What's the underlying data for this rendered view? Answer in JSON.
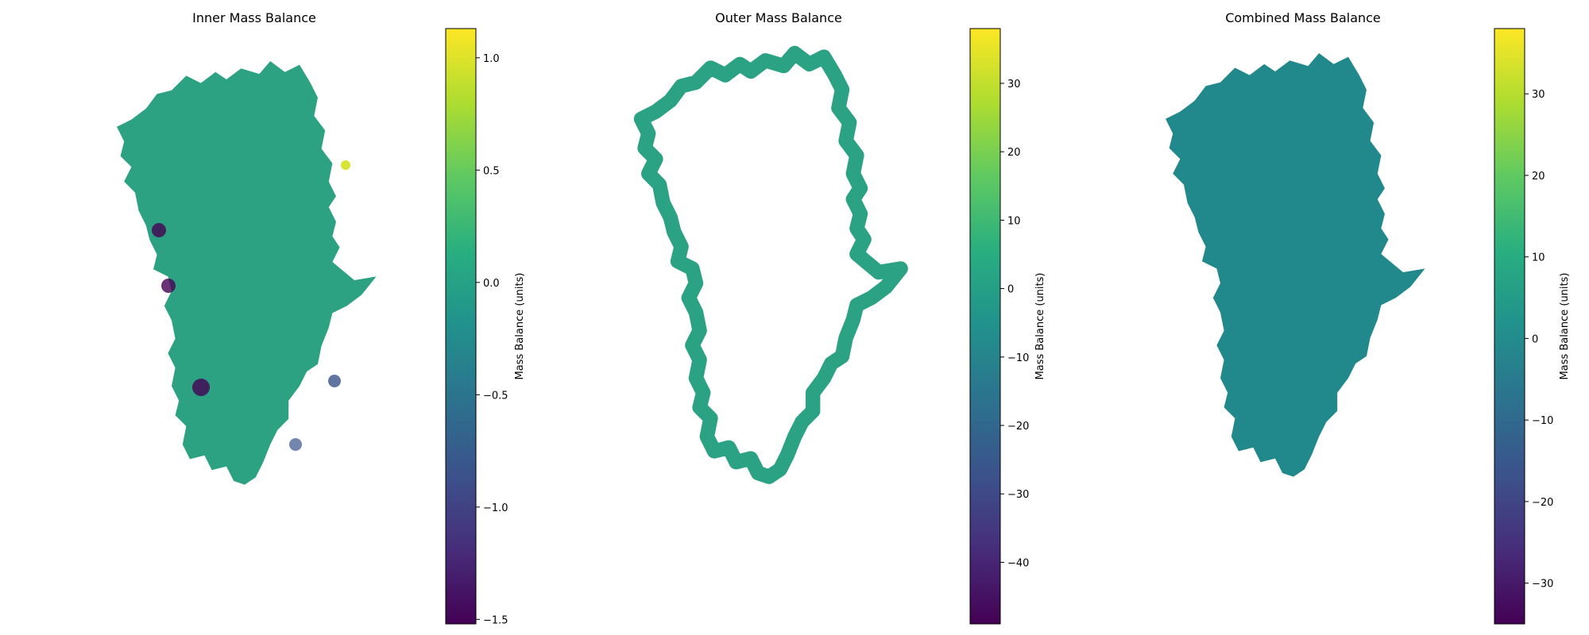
{
  "chart_data": [
    {
      "type": "heatmap",
      "title": "Inner Mass Balance",
      "colorbar": {
        "label": "Mass Balance (units)",
        "colormap": "viridis",
        "range": [
          -1.52,
          1.13
        ],
        "ticks": [
          1.0,
          0.5,
          0.0,
          -0.5,
          -1.0,
          -1.5
        ],
        "tick_labels": [
          "1.0",
          "0.5",
          "0.0",
          "−0.5",
          "−1.0",
          "−1.5"
        ]
      },
      "map_description": "Greenland ice sheet interior; values mostly near 0.1 with negative lows along western margin",
      "hotspots": [
        {
          "location": "west",
          "value": -1.5
        },
        {
          "location": "west",
          "value": -1.4
        },
        {
          "location": "south-west",
          "value": -1.5
        },
        {
          "location": "east",
          "value": -0.7
        },
        {
          "location": "south-east",
          "value": -0.8
        },
        {
          "location": "north-east",
          "value": 1.0
        }
      ],
      "axes_visible": false
    },
    {
      "type": "heatmap",
      "title": "Outer Mass Balance",
      "colorbar": {
        "label": "Mass Balance (units)",
        "colormap": "viridis",
        "range": [
          -49,
          38
        ],
        "ticks": [
          30,
          20,
          10,
          0,
          -10,
          -20,
          -30,
          -40
        ],
        "tick_labels": [
          "30",
          "20",
          "10",
          "0",
          "−10",
          "−20",
          "−30",
          "−40"
        ]
      },
      "map_description": "Coastal margin band of Greenland; values near 5",
      "typical_value": 5,
      "axes_visible": false
    },
    {
      "type": "heatmap",
      "title": "Combined Mass Balance",
      "colorbar": {
        "label": "Mass Balance (units)",
        "colormap": "viridis",
        "range": [
          -35,
          38
        ],
        "ticks": [
          30,
          20,
          10,
          0,
          -10,
          -20,
          -30
        ],
        "tick_labels": [
          "30",
          "20",
          "10",
          "0",
          "−10",
          "−20",
          "−30"
        ]
      },
      "map_description": "Full Greenland ice sheet; values near 0",
      "typical_value": 0,
      "axes_visible": false
    }
  ]
}
